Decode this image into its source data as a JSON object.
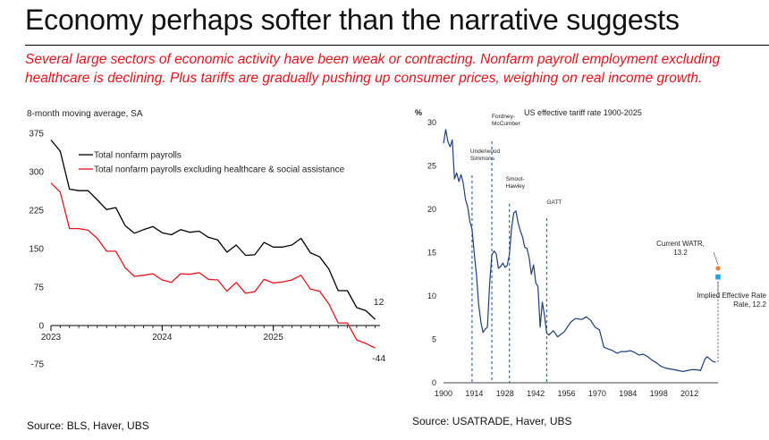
{
  "header": {
    "title": "Economy perhaps softer than the narrative suggests",
    "subtitle": "Several large sectors of economic activity have been weak or contracting. Nonfarm payroll employment excluding healthcare is declining. Plus tariffs are gradually pushing up consumer prices, weighing on real income growth."
  },
  "left_source": "Source: BLS, Haver, UBS",
  "right_source": "Source: USATRADE, Haver, UBS",
  "chart_data": [
    {
      "type": "line",
      "title": "8-month moving average, SA",
      "ylim": [
        -75,
        375
      ],
      "yticks": [
        -75,
        0,
        75,
        150,
        225,
        300,
        375
      ],
      "xlim": [
        2023,
        2025.96
      ],
      "xticks": [
        2023,
        2024,
        2025
      ],
      "xtick_labels": [
        "2023",
        "2024",
        "2025"
      ],
      "x": [
        2023.0,
        2023.0833,
        2023.1667,
        2023.25,
        2023.3333,
        2023.4167,
        2023.5,
        2023.5833,
        2023.6667,
        2023.75,
        2023.8333,
        2023.9167,
        2024.0,
        2024.0833,
        2024.1667,
        2024.25,
        2024.3333,
        2024.4167,
        2024.5,
        2024.5833,
        2024.6667,
        2024.75,
        2024.8333,
        2024.9167,
        2025.0,
        2025.0833,
        2025.1667,
        2025.25,
        2025.3333,
        2025.4167,
        2025.5,
        2025.5833,
        2025.6667,
        2025.75,
        2025.8333,
        2025.9167
      ],
      "series": [
        {
          "name": "Total nonfarm payrolls",
          "color": "#000000",
          "values": [
            362,
            340,
            266,
            263,
            263,
            245,
            226,
            230,
            195,
            180,
            187,
            193,
            181,
            177,
            187,
            182,
            184,
            172,
            167,
            143,
            157,
            137,
            138,
            162,
            153,
            153,
            157,
            170,
            142,
            134,
            110,
            68,
            68,
            35,
            29,
            12
          ]
        },
        {
          "name": "Total nonfarm payrolls excluding healthcare & social assistance",
          "color": "#e8111b",
          "values": [
            278,
            260,
            189,
            189,
            186,
            170,
            145,
            145,
            113,
            96,
            98,
            101,
            89,
            84,
            101,
            100,
            103,
            90,
            89,
            67,
            84,
            63,
            66,
            90,
            83,
            85,
            89,
            98,
            71,
            67,
            42,
            5,
            5,
            -28,
            -35,
            -44
          ]
        }
      ],
      "end_labels": [
        "12",
        "-44"
      ]
    },
    {
      "type": "line",
      "title": "US effective tariff rate 1900-2025",
      "ylabel": "%",
      "ylim": [
        0,
        30
      ],
      "yticks": [
        0,
        5,
        10,
        15,
        20,
        25,
        30
      ],
      "xlim": [
        1900,
        2025
      ],
      "xticks": [
        1900,
        1914,
        1928,
        1942,
        1956,
        1970,
        1984,
        1998,
        2012
      ],
      "series": [
        {
          "name": "US effective tariff rate",
          "color": "#1f3d7a",
          "x": [
            1900,
            1901,
            1902,
            1903,
            1904,
            1905,
            1906,
            1907,
            1908,
            1909,
            1910,
            1911,
            1912,
            1913,
            1914,
            1915,
            1916,
            1917,
            1918,
            1919,
            1920,
            1921,
            1922,
            1923,
            1924,
            1925,
            1926,
            1927,
            1928,
            1929,
            1930,
            1931,
            1932,
            1933,
            1934,
            1935,
            1936,
            1937,
            1938,
            1939,
            1940,
            1941,
            1942,
            1943,
            1944,
            1945,
            1946,
            1947,
            1948,
            1950,
            1952,
            1955,
            1958,
            1960,
            1963,
            1965,
            1967,
            1969,
            1971,
            1973,
            1975,
            1977,
            1979,
            1981,
            1983,
            1985,
            1987,
            1989,
            1991,
            1993,
            1995,
            1997,
            1999,
            2001,
            2003,
            2005,
            2007,
            2009,
            2011,
            2013,
            2015,
            2017,
            2019,
            2020,
            2021,
            2022,
            2023,
            2024
          ],
          "values": [
            27.6,
            29.2,
            27.8,
            27.2,
            28.0,
            23.5,
            24.2,
            23.2,
            24.0,
            23.0,
            21.1,
            20.3,
            18.6,
            17.7,
            14.9,
            12.5,
            9.0,
            7.0,
            5.8,
            6.2,
            6.4,
            11.4,
            14.7,
            15.2,
            14.9,
            13.2,
            13.4,
            13.8,
            13.3,
            13.5,
            14.8,
            17.8,
            19.6,
            19.8,
            18.4,
            17.5,
            16.8,
            15.6,
            15.5,
            14.4,
            12.5,
            13.6,
            11.5,
            11.1,
            6.4,
            9.3,
            7.7,
            5.7,
            5.5,
            6.0,
            5.3,
            5.9,
            7.0,
            7.4,
            7.3,
            7.6,
            7.2,
            6.4,
            6.1,
            4.1,
            3.9,
            3.7,
            3.4,
            3.6,
            3.6,
            3.7,
            3.5,
            3.2,
            3.3,
            3.0,
            2.6,
            2.3,
            1.9,
            1.7,
            1.6,
            1.5,
            1.4,
            1.3,
            1.4,
            1.5,
            1.5,
            1.4,
            2.7,
            3.0,
            2.8,
            2.6,
            2.4,
            2.4
          ]
        }
      ],
      "events": [
        {
          "label": "Underwood Simmons",
          "year": 1913
        },
        {
          "label": "Fordney-McCumber",
          "year": 1922
        },
        {
          "label": "Smoot-Hawley",
          "year": 1930
        },
        {
          "label": "GATT",
          "year": 1947
        }
      ],
      "markers": [
        {
          "label": "Current WATR, 13.2",
          "year": 2025,
          "value": 13.2,
          "color": "#f07b2a"
        },
        {
          "label": "Implied Effective Rate, 12.2",
          "year": 2025,
          "value": 12.2,
          "color": "#1fa4e0"
        }
      ]
    }
  ]
}
